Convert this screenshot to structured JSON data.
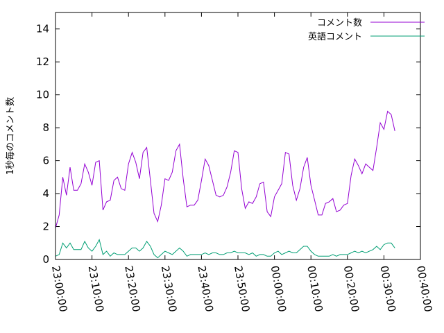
{
  "chart_data": {
    "type": "line",
    "title": "",
    "xlabel": "",
    "ylabel": "1秒毎のコメント数",
    "xlim": [
      "23:00:00",
      "00:40:00"
    ],
    "ylim": [
      0,
      15
    ],
    "grid": false,
    "legend_position": "top-right",
    "y_ticks": [
      "0",
      "2",
      "4",
      "6",
      "8",
      "10",
      "12",
      "14"
    ],
    "x_ticks": [
      "23:00:00",
      "23:10:00",
      "23:20:00",
      "23:30:00",
      "23:40:00",
      "23:50:00",
      "00:00:00",
      "00:10:00",
      "00:20:00",
      "00:30:00",
      "00:40:00"
    ],
    "series": [
      {
        "name": "コメント数",
        "color": "#9400d3",
        "x": [
          "23:00:00",
          "23:01:00",
          "23:02:00",
          "23:03:00",
          "23:04:00",
          "23:05:00",
          "23:06:00",
          "23:07:00",
          "23:08:00",
          "23:09:00",
          "23:10:00",
          "23:11:00",
          "23:12:00",
          "23:13:00",
          "23:14:00",
          "23:15:00",
          "23:16:00",
          "23:17:00",
          "23:18:00",
          "23:19:00",
          "23:20:00",
          "23:21:00",
          "23:22:00",
          "23:23:00",
          "23:24:00",
          "23:25:00",
          "23:26:00",
          "23:27:00",
          "23:28:00",
          "23:29:00",
          "23:30:00",
          "23:31:00",
          "23:32:00",
          "23:33:00",
          "23:34:00",
          "23:35:00",
          "23:36:00",
          "23:37:00",
          "23:38:00",
          "23:39:00",
          "23:40:00",
          "23:41:00",
          "23:42:00",
          "23:43:00",
          "23:44:00",
          "23:45:00",
          "23:46:00",
          "23:47:00",
          "23:48:00",
          "23:49:00",
          "23:50:00",
          "23:51:00",
          "23:52:00",
          "23:53:00",
          "23:54:00",
          "23:55:00",
          "23:56:00",
          "23:57:00",
          "23:58:00",
          "23:59:00",
          "00:00:00",
          "00:01:00",
          "00:02:00",
          "00:03:00",
          "00:04:00",
          "00:05:00",
          "00:06:00",
          "00:07:00",
          "00:08:00",
          "00:09:00",
          "00:10:00",
          "00:11:00",
          "00:12:00",
          "00:13:00",
          "00:14:00",
          "00:15:00",
          "00:16:00",
          "00:17:00",
          "00:18:00",
          "00:19:00",
          "00:20:00",
          "00:21:00",
          "00:22:00",
          "00:23:00",
          "00:24:00",
          "00:25:00",
          "00:26:00",
          "00:27:00",
          "00:28:00",
          "00:29:00",
          "00:30:00",
          "00:31:00",
          "00:32:00",
          "00:33:00"
        ],
        "values": [
          1.9,
          2.7,
          5.0,
          3.9,
          5.6,
          4.2,
          4.2,
          4.6,
          5.8,
          5.3,
          4.5,
          5.9,
          6.0,
          3.0,
          3.5,
          3.6,
          4.8,
          5.0,
          4.3,
          4.2,
          5.8,
          6.5,
          5.9,
          4.9,
          6.5,
          6.8,
          4.8,
          2.8,
          2.3,
          3.3,
          4.9,
          4.8,
          5.3,
          6.6,
          7.0,
          4.9,
          3.2,
          3.3,
          3.3,
          3.6,
          4.8,
          6.1,
          5.7,
          4.8,
          3.9,
          3.8,
          3.9,
          4.4,
          5.3,
          6.6,
          6.5,
          4.3,
          3.1,
          3.5,
          3.4,
          3.8,
          4.6,
          4.7,
          2.9,
          2.6,
          3.8,
          4.2,
          4.6,
          6.5,
          6.4,
          4.5,
          3.6,
          4.3,
          5.6,
          6.2,
          4.5,
          3.6,
          2.7,
          2.7,
          3.4,
          3.5,
          3.7,
          2.9,
          3.0,
          3.3,
          3.4,
          5.1,
          6.1,
          5.7,
          5.2,
          5.8,
          5.6,
          5.4,
          6.8,
          8.3,
          7.9,
          9.0,
          8.8,
          7.8
        ]
      },
      {
        "name": "英語コメント",
        "color": "#009e73",
        "x": [
          "23:00:00",
          "23:01:00",
          "23:02:00",
          "23:03:00",
          "23:04:00",
          "23:05:00",
          "23:06:00",
          "23:07:00",
          "23:08:00",
          "23:09:00",
          "23:10:00",
          "23:11:00",
          "23:12:00",
          "23:13:00",
          "23:14:00",
          "23:15:00",
          "23:16:00",
          "23:17:00",
          "23:18:00",
          "23:19:00",
          "23:20:00",
          "23:21:00",
          "23:22:00",
          "23:23:00",
          "23:24:00",
          "23:25:00",
          "23:26:00",
          "23:27:00",
          "23:28:00",
          "23:29:00",
          "23:30:00",
          "23:31:00",
          "23:32:00",
          "23:33:00",
          "23:34:00",
          "23:35:00",
          "23:36:00",
          "23:37:00",
          "23:38:00",
          "23:39:00",
          "23:40:00",
          "23:41:00",
          "23:42:00",
          "23:43:00",
          "23:44:00",
          "23:45:00",
          "23:46:00",
          "23:47:00",
          "23:48:00",
          "23:49:00",
          "23:50:00",
          "23:51:00",
          "23:52:00",
          "23:53:00",
          "23:54:00",
          "23:55:00",
          "23:56:00",
          "23:57:00",
          "23:58:00",
          "23:59:00",
          "00:00:00",
          "00:01:00",
          "00:02:00",
          "00:03:00",
          "00:04:00",
          "00:05:00",
          "00:06:00",
          "00:07:00",
          "00:08:00",
          "00:09:00",
          "00:10:00",
          "00:11:00",
          "00:12:00",
          "00:13:00",
          "00:14:00",
          "00:15:00",
          "00:16:00",
          "00:17:00",
          "00:18:00",
          "00:19:00",
          "00:20:00",
          "00:21:00",
          "00:22:00",
          "00:23:00",
          "00:24:00",
          "00:25:00",
          "00:26:00",
          "00:27:00",
          "00:28:00",
          "00:29:00",
          "00:30:00",
          "00:31:00",
          "00:32:00",
          "00:33:00"
        ],
        "values": [
          0.2,
          0.3,
          1.0,
          0.7,
          1.0,
          0.6,
          0.6,
          0.6,
          1.1,
          0.7,
          0.5,
          0.8,
          1.2,
          0.3,
          0.5,
          0.2,
          0.4,
          0.3,
          0.3,
          0.3,
          0.5,
          0.7,
          0.7,
          0.5,
          0.7,
          1.1,
          0.8,
          0.3,
          0.1,
          0.3,
          0.5,
          0.4,
          0.3,
          0.5,
          0.7,
          0.5,
          0.2,
          0.3,
          0.3,
          0.3,
          0.3,
          0.4,
          0.3,
          0.4,
          0.4,
          0.3,
          0.3,
          0.4,
          0.4,
          0.5,
          0.4,
          0.4,
          0.4,
          0.3,
          0.4,
          0.2,
          0.3,
          0.3,
          0.2,
          0.2,
          0.4,
          0.5,
          0.3,
          0.4,
          0.5,
          0.4,
          0.4,
          0.6,
          0.8,
          0.8,
          0.5,
          0.3,
          0.2,
          0.2,
          0.2,
          0.2,
          0.3,
          0.2,
          0.3,
          0.3,
          0.3,
          0.4,
          0.5,
          0.4,
          0.5,
          0.4,
          0.5,
          0.6,
          0.8,
          0.6,
          0.9,
          1.0,
          1.0,
          0.7
        ]
      }
    ]
  }
}
